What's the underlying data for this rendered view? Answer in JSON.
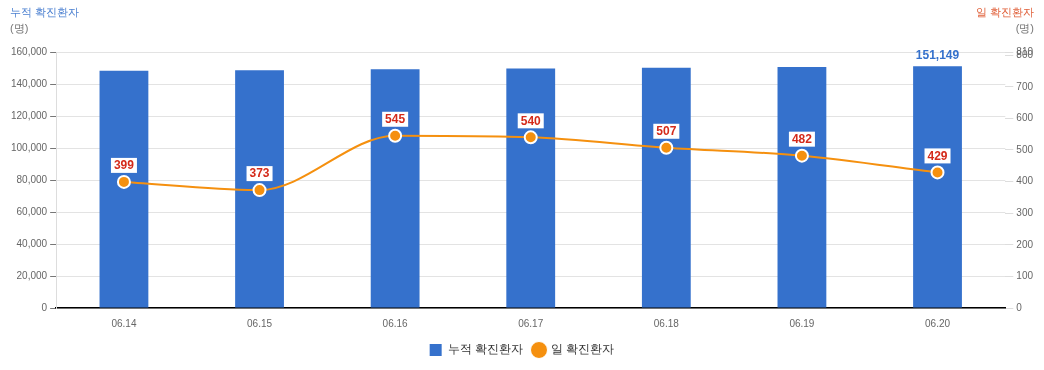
{
  "chart_data": {
    "type": "bar",
    "ylabel": "누적 확진환자\n(명)",
    "y2label": "일 확진환자\n(명)",
    "categories": [
      "06.14",
      "06.15",
      "06.16",
      "06.17",
      "06.18",
      "06.19",
      "06.20"
    ],
    "series": [
      {
        "name": "누적 확진환자",
        "color": "#3571cc",
        "values": [
          148300,
          148600,
          149200,
          149700,
          150200,
          150700,
          151149
        ],
        "value_labels": [
          null,
          null,
          null,
          null,
          null,
          null,
          "151,149"
        ]
      },
      {
        "name": "일 확진환자",
        "type": "line",
        "axis": "y2",
        "color": "#f5900f",
        "values": [
          399,
          373,
          545,
          540,
          507,
          482,
          429
        ],
        "value_labels": [
          "399",
          "373",
          "545",
          "540",
          "507",
          "482",
          "429"
        ]
      }
    ],
    "ylim": [
      0,
      160000
    ],
    "yticks": [
      {
        "value": 0,
        "label": "0"
      },
      {
        "value": 20000,
        "label": "20,000"
      },
      {
        "value": 40000,
        "label": "40,000"
      },
      {
        "value": 60000,
        "label": "60,000"
      },
      {
        "value": 80000,
        "label": "80,000"
      },
      {
        "value": 100000,
        "label": "100,000"
      },
      {
        "value": 120000,
        "label": "120,000"
      },
      {
        "value": 140000,
        "label": "140,000"
      },
      {
        "value": 160000,
        "label": "160,000"
      }
    ],
    "y2lim": [
      0,
      810
    ],
    "y2ticks": [
      0,
      100,
      200,
      300,
      400,
      500,
      600,
      700,
      800,
      810
    ],
    "grid": "y",
    "legend": "bottom",
    "marker": "circle",
    "line_style": "solid"
  }
}
